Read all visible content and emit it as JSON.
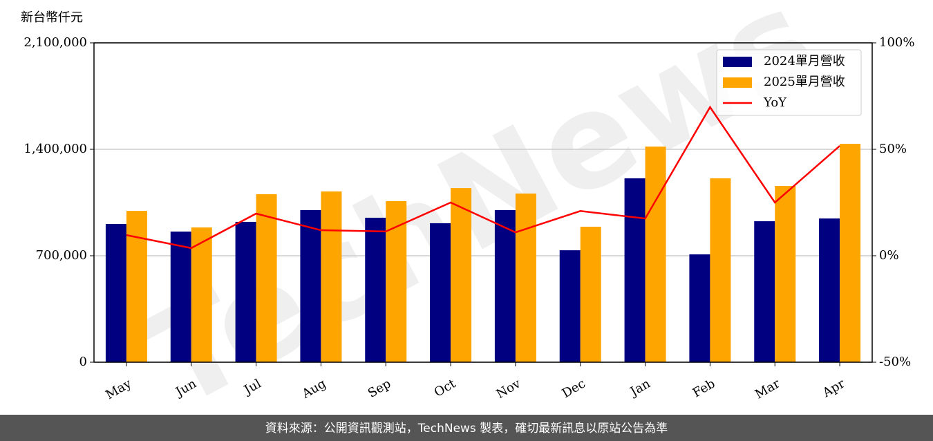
{
  "chart_data": {
    "type": "bar-line",
    "y_label": "新台幣仟元",
    "categories": [
      "May",
      "Jun",
      "Jul",
      "Aug",
      "Sep",
      "Oct",
      "Nov",
      "Dec",
      "Jan",
      "Feb",
      "Mar",
      "Apr"
    ],
    "series": [
      {
        "name": "2024單月營收",
        "color": "#000080",
        "type": "bar",
        "values": [
          909000,
          859000,
          923000,
          1000000,
          950000,
          914000,
          1000000,
          736000,
          1209000,
          709000,
          927000,
          945000
        ]
      },
      {
        "name": "2025單月營收",
        "color": "#ffa500",
        "type": "bar",
        "values": [
          995000,
          886000,
          1105000,
          1123000,
          1059000,
          1145000,
          1109000,
          891000,
          1418000,
          1209000,
          1159000,
          1436000
        ]
      },
      {
        "name": "YoY",
        "color": "#ff0000",
        "type": "line",
        "axis": "y2",
        "values": [
          9.7,
          3.6,
          19.8,
          12.0,
          11.4,
          25.0,
          11.0,
          21.0,
          17.5,
          69.8,
          25.0,
          51.6
        ]
      }
    ],
    "ylim": [
      0,
      2100000
    ],
    "yticks": [
      0,
      {
        "value": 700000,
        "label": "700,000"
      },
      {
        "value": 1400000,
        "label": "1,400,000"
      },
      {
        "value": 2100000,
        "label": "2,100,000"
      }
    ],
    "y2lim": [
      -50,
      100
    ],
    "y2ticks": [
      {
        "value": -50,
        "label": "-50%"
      },
      {
        "value": 0,
        "label": "0%"
      },
      {
        "value": 50,
        "label": "50%"
      },
      {
        "value": 100,
        "label": "100%"
      }
    ],
    "grid": true,
    "legend": "upper right",
    "watermark": "TechNews",
    "footer": "資料來源：公開資訊觀測站，TechNews 製表，確切最新訊息以原站公告為準"
  }
}
